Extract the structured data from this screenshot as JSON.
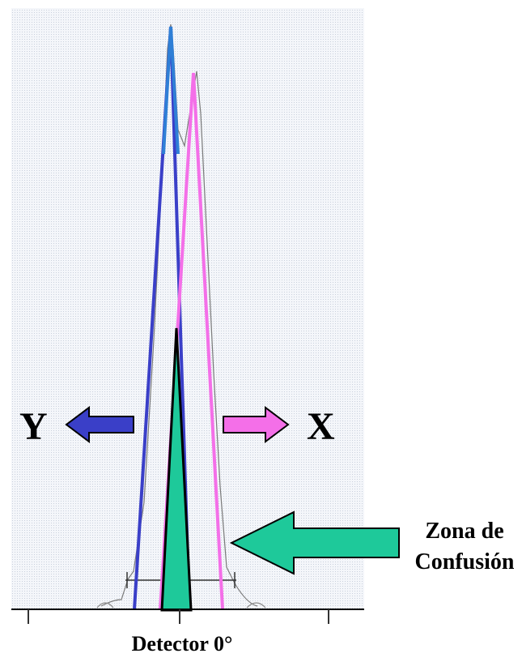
{
  "labels": {
    "left_label": "Y",
    "right_label": "X",
    "zone_line1": "Zona de",
    "zone_line2": "Confusión",
    "detector": "Detector 0°"
  },
  "colors": {
    "background": "#ffffff",
    "plot_background": "#f2f4f8",
    "peak_y": "#3a3fc8",
    "peak_y_top": "#2f7fd6",
    "peak_x": "#f46fe8",
    "confusion_zone": "#1ec99a",
    "outline": "#000000",
    "curve": "#6e6e6e"
  },
  "icons": {
    "left_arrow": "arrow-left-icon",
    "right_arrow": "arrow-right-icon",
    "zone_arrow": "arrow-left-icon"
  }
}
